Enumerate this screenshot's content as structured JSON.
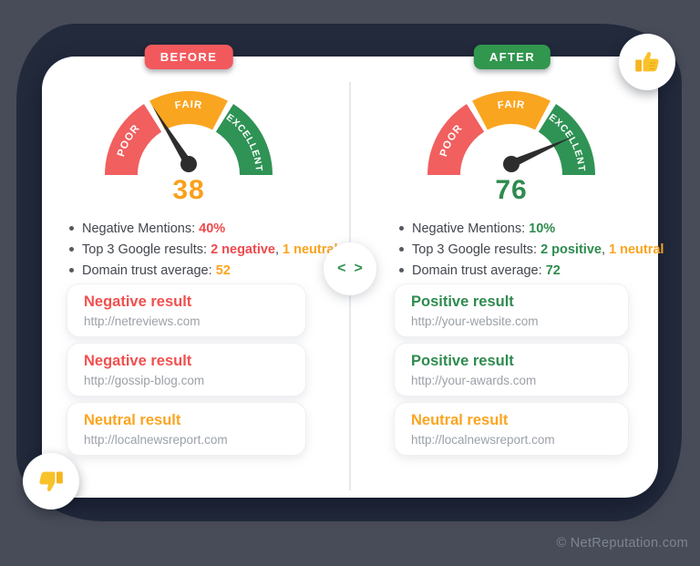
{
  "page": {
    "copyright": "© NetReputation.com"
  },
  "theme": {
    "background": "#484c58",
    "blob": "#222a3c",
    "card": "#ffffff",
    "red": "#ee4a4d",
    "orange": "#fba41f",
    "green": "#2e8b4f",
    "text_dark": "#42464d",
    "url_gray": "#9ba1a8",
    "chevron_green": "#2e9150"
  },
  "icons": {
    "thumbs_up": "thumbs-up",
    "thumbs_down": "thumbs-down",
    "left_chevron": "<",
    "right_chevron": ">"
  },
  "chart_data": [
    {
      "type": "gauge",
      "title": "BEFORE",
      "value": 38,
      "min": 0,
      "max": 100,
      "needle_angle_deg": 122,
      "needle_color": "#2d2d2d",
      "value_color": "#f9a01c",
      "segments": [
        {
          "label": "POOR",
          "color": "#f15f5f",
          "from": 0,
          "to": 33
        },
        {
          "label": "FAIR",
          "color": "#faa51f",
          "from": 33,
          "to": 67
        },
        {
          "label": "EXCELLENT",
          "color": "#2f9355",
          "from": 67,
          "to": 100
        }
      ]
    },
    {
      "type": "gauge",
      "title": "AFTER",
      "value": 76,
      "min": 0,
      "max": 100,
      "needle_angle_deg": 24,
      "needle_color": "#2d2d2d",
      "value_color": "#2e8b4f",
      "segments": [
        {
          "label": "POOR",
          "color": "#f15f5f",
          "from": 0,
          "to": 33
        },
        {
          "label": "FAIR",
          "color": "#faa51f",
          "from": 33,
          "to": 67
        },
        {
          "label": "EXCELLENT",
          "color": "#2f9355",
          "from": 67,
          "to": 100
        }
      ]
    }
  ],
  "panels": [
    {
      "badge": {
        "label": "BEFORE",
        "color": "#f2595d"
      },
      "score": {
        "value": "38",
        "color": "#f9a01c"
      },
      "bullets": [
        [
          {
            "t": "Negative Mentions: "
          },
          {
            "t": "40%",
            "c": "#ee4a4d",
            "b": true
          }
        ],
        [
          {
            "t": "Top 3 Google results: "
          },
          {
            "t": "2 negative",
            "c": "#ee4a4d",
            "b": true
          },
          {
            "t": ", "
          },
          {
            "t": "1 neutral",
            "c": "#fba41f",
            "b": true
          }
        ],
        [
          {
            "t": "Domain trust average: "
          },
          {
            "t": "52",
            "c": "#fba41f",
            "b": true
          }
        ]
      ],
      "results": [
        {
          "title": "Negative result",
          "color": "#f0504f",
          "url": "http://netreviews.com"
        },
        {
          "title": "Negative result",
          "color": "#f0504f",
          "url": "http://gossip-blog.com"
        },
        {
          "title": "Neutral result",
          "color": "#fba41f",
          "url": "http://localnewsreport.com"
        }
      ]
    },
    {
      "badge": {
        "label": "AFTER",
        "color": "#31964e"
      },
      "score": {
        "value": "76",
        "color": "#2e8b4f"
      },
      "bullets": [
        [
          {
            "t": "Negative Mentions: "
          },
          {
            "t": "10%",
            "c": "#2e8b4f",
            "b": true
          }
        ],
        [
          {
            "t": "Top 3 Google results: "
          },
          {
            "t": "2 positive",
            "c": "#2e8b4f",
            "b": true
          },
          {
            "t": ", "
          },
          {
            "t": "1 neutral",
            "c": "#fba41f",
            "b": true
          }
        ],
        [
          {
            "t": "Domain trust average: "
          },
          {
            "t": "72",
            "c": "#2e8b4f",
            "b": true
          }
        ]
      ],
      "results": [
        {
          "title": "Positive result",
          "color": "#2e8b4f",
          "url": "http://your-website.com"
        },
        {
          "title": "Positive result",
          "color": "#2e8b4f",
          "url": "http://your-awards.com"
        },
        {
          "title": "Neutral result",
          "color": "#fba41f",
          "url": "http://localnewsreport.com"
        }
      ]
    }
  ]
}
